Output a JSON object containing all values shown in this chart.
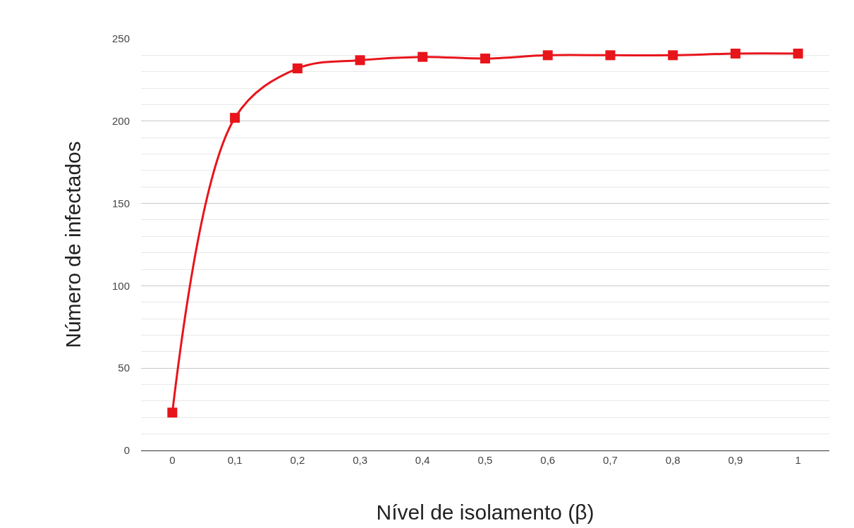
{
  "chart_data": {
    "type": "line",
    "xlabel": "Nível de isolamento (β)",
    "ylabel": "Número de infectados",
    "categories": [
      "0",
      "0,1",
      "0,2",
      "0,3",
      "0,4",
      "0,5",
      "0,6",
      "0,7",
      "0,8",
      "0,9",
      "1"
    ],
    "series": [
      {
        "color": "#e8141c",
        "values": [
          23,
          202,
          232,
          237,
          239,
          238,
          240,
          240,
          240,
          241,
          241
        ]
      }
    ],
    "ylim": [
      0,
      250
    ],
    "yticks": [
      0,
      {
        "value": 10,
        "label": null
      },
      {
        "value": 20,
        "label": null
      },
      {
        "value": 30,
        "label": null
      },
      {
        "value": 40,
        "label": null
      },
      50,
      {
        "value": 60,
        "label": null
      },
      {
        "value": 70,
        "label": null
      },
      {
        "value": 80,
        "label": null
      },
      {
        "value": 90,
        "label": null
      },
      100,
      {
        "value": 110,
        "label": null
      },
      {
        "value": 120,
        "label": null
      },
      {
        "value": 130,
        "label": null
      },
      {
        "value": 140,
        "label": null
      },
      150,
      {
        "value": 160,
        "label": null
      },
      {
        "value": 170,
        "label": null
      },
      {
        "value": 180,
        "label": null
      },
      {
        "value": 190,
        "label": null
      },
      200,
      {
        "value": 210,
        "label": null
      },
      {
        "value": 220,
        "label": null
      },
      {
        "value": 230,
        "label": null
      },
      {
        "value": 240,
        "label": null
      },
      250
    ],
    "grid": "y",
    "marker": "square",
    "line_style": "solid"
  }
}
